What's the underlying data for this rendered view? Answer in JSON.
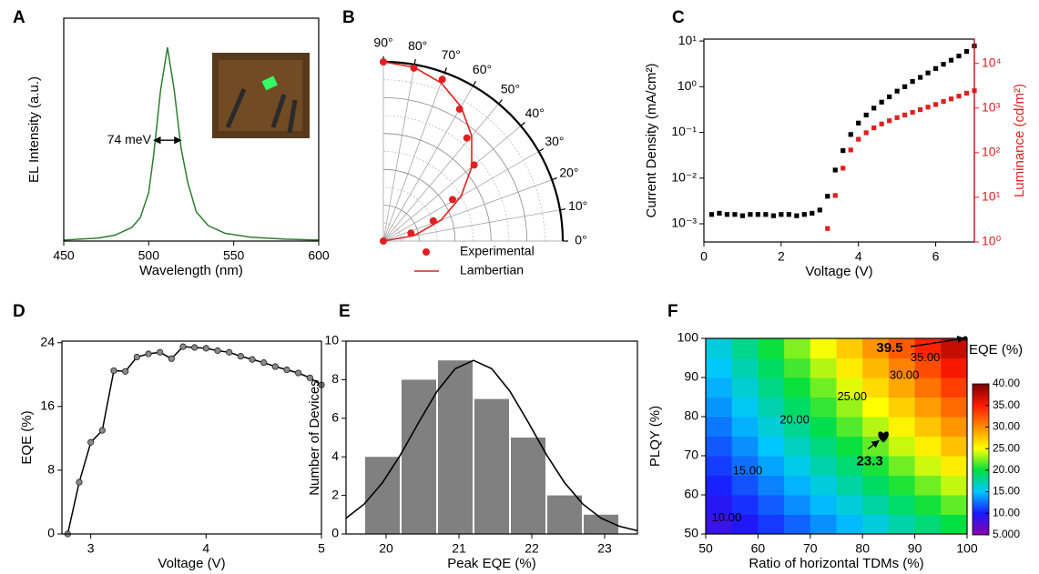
{
  "chart_data": [
    {
      "panel": "A",
      "type": "line",
      "x_label": "Wavelength (nm)",
      "y_label": "EL Intensity (a.u.)",
      "x": [
        450,
        470,
        480,
        490,
        495,
        500,
        503,
        507,
        511,
        515,
        519,
        523,
        528,
        535,
        545,
        560,
        580,
        600
      ],
      "series": [
        {
          "color": "#2e7d32",
          "style": "line",
          "values": [
            0.005,
            0.015,
            0.03,
            0.07,
            0.12,
            0.25,
            0.45,
            0.78,
            1.0,
            0.78,
            0.48,
            0.3,
            0.15,
            0.08,
            0.04,
            0.02,
            0.01,
            0.005
          ]
        }
      ],
      "annotation": {
        "text": "74 meV",
        "x": [
          503,
          519
        ],
        "y": 0.52
      },
      "xlim": [
        450,
        600
      ],
      "ylim": [
        0,
        1.15
      ],
      "xticks": [
        450,
        500,
        550,
        600
      ]
    },
    {
      "panel": "B",
      "type": "polar",
      "rlim": [
        0,
        1
      ],
      "thetaticks": [
        {
          "value": 0,
          "label": "0°"
        },
        {
          "value": 10,
          "label": "10°"
        },
        {
          "value": 20,
          "label": "20°"
        },
        {
          "value": 30,
          "label": "30°"
        },
        {
          "value": 40,
          "label": "40°"
        },
        {
          "value": 50,
          "label": "50°"
        },
        {
          "value": 60,
          "label": "60°"
        },
        {
          "value": 70,
          "label": "70°"
        },
        {
          "value": 80,
          "label": "80°"
        },
        {
          "value": 90,
          "label": "90°"
        }
      ],
      "series": [
        {
          "name": "Experimental",
          "color": "#e02020",
          "style": "markers",
          "theta": [
            0,
            16,
            22,
            31,
            40,
            51,
            60,
            70,
            80,
            90
          ],
          "values": [
            0,
            0.16,
            0.3,
            0.45,
            0.66,
            0.74,
            0.85,
            0.96,
            0.98,
            1.0
          ]
        },
        {
          "name": "Lambertian",
          "color": "#e02020",
          "style": "line",
          "theta": [
            0,
            10,
            20,
            30,
            40,
            50,
            60,
            70,
            80,
            90
          ],
          "values": [
            0,
            0.174,
            0.342,
            0.5,
            0.643,
            0.766,
            0.866,
            0.94,
            0.985,
            1.0
          ]
        }
      ]
    },
    {
      "panel": "C",
      "type": "line",
      "x_label": "Voltage (V)",
      "y_label": "Current Density (mA/cm²)",
      "y2_label": "Luminance (cd/m²)",
      "y2_color": "#e02020",
      "x": [
        0.2,
        0.4,
        0.6,
        0.8,
        1.0,
        1.2,
        1.4,
        1.6,
        1.8,
        2.0,
        2.2,
        2.4,
        2.6,
        2.8,
        3.0,
        3.2,
        3.4,
        3.6,
        3.8,
        4.0,
        4.2,
        4.4,
        4.6,
        4.8,
        5.0,
        5.2,
        5.4,
        5.6,
        5.8,
        6.0,
        6.2,
        6.4,
        6.6,
        6.8,
        7.0
      ],
      "series": [
        {
          "color": "#000000",
          "style": "markers",
          "marker": "square",
          "values": [
            0.0016,
            0.0017,
            0.0016,
            0.0016,
            0.0015,
            0.0016,
            0.0016,
            0.0016,
            0.0015,
            0.0016,
            0.0016,
            0.0015,
            0.0016,
            0.0017,
            0.002,
            0.004,
            0.015,
            0.04,
            0.09,
            0.16,
            0.24,
            0.34,
            0.46,
            0.6,
            0.8,
            1.0,
            1.3,
            1.6,
            2.0,
            2.5,
            3.1,
            3.8,
            4.7,
            5.9,
            7.8
          ]
        },
        {
          "color": "#e02020",
          "style": "markers",
          "marker": "square",
          "axis": "y2",
          "values": [
            null,
            null,
            null,
            null,
            null,
            null,
            null,
            null,
            null,
            null,
            null,
            null,
            null,
            null,
            null,
            2,
            11,
            45,
            115,
            200,
            280,
            360,
            440,
            520,
            610,
            700,
            800,
            920,
            1050,
            1200,
            1400,
            1600,
            1850,
            2150,
            2450
          ]
        }
      ],
      "xlim": [
        0,
        7
      ],
      "xticks": [
        0,
        2,
        4,
        6
      ],
      "ylog": true,
      "y2log": true,
      "ylim": [
        0.0004,
        11
      ],
      "yticks": [
        {
          "value": 0.001,
          "label": "10⁻³"
        },
        {
          "value": 0.01,
          "label": "10⁻²"
        },
        {
          "value": 0.1,
          "label": "10⁻¹"
        },
        {
          "value": 1,
          "label": "10⁰"
        },
        {
          "value": 10,
          "label": "10¹"
        }
      ],
      "y2lim": [
        1,
        35000
      ],
      "y2ticks": [
        {
          "value": 1,
          "label": "10⁰"
        },
        {
          "value": 10,
          "label": "10¹"
        },
        {
          "value": 100,
          "label": "10²"
        },
        {
          "value": 1000,
          "label": "10³"
        },
        {
          "value": 10000,
          "label": "10⁴"
        }
      ]
    },
    {
      "panel": "D",
      "type": "line",
      "x_label": "Voltage (V)",
      "y_label": "EQE (%)",
      "x": [
        2.8,
        2.9,
        3.0,
        3.1,
        3.2,
        3.3,
        3.4,
        3.5,
        3.6,
        3.7,
        3.8,
        3.9,
        4.0,
        4.1,
        4.2,
        4.3,
        4.4,
        4.5,
        4.6,
        4.7,
        4.8,
        4.9,
        5.0
      ],
      "series": [
        {
          "color": "#000000",
          "style": "line-markers",
          "marker": "circle",
          "values": [
            0,
            6.5,
            11.5,
            13,
            20.5,
            20.4,
            22.2,
            22.6,
            22.8,
            22,
            23.5,
            23.4,
            23.3,
            23.0,
            22.8,
            22.3,
            21.9,
            21.5,
            21.0,
            20.6,
            20.2,
            19.6,
            18.7
          ]
        }
      ],
      "xlim": [
        2.75,
        5
      ],
      "xticks": [
        3,
        4,
        5
      ],
      "ylim": [
        0,
        24.2
      ],
      "yticks": [
        0,
        8,
        16,
        24
      ]
    },
    {
      "panel": "E",
      "type": "histogram",
      "x_label": "Peak EQE (%)",
      "y_label": "Number of Devices",
      "color": "#808080",
      "bins": [
        19.7,
        20.2,
        20.7,
        21.2,
        21.7,
        22.2,
        22.7,
        23.2
      ],
      "counts": [
        4,
        8,
        9,
        7,
        5,
        2,
        1
      ],
      "fit": {
        "color": "#000000",
        "x": [
          19.45,
          19.7,
          19.95,
          20.2,
          20.45,
          20.7,
          20.95,
          21.2,
          21.45,
          21.7,
          21.95,
          22.2,
          22.45,
          22.7,
          22.95,
          23.2,
          23.45
        ],
        "values": [
          0.82,
          1.55,
          2.66,
          4.12,
          5.8,
          7.4,
          8.57,
          9,
          8.57,
          7.4,
          5.8,
          4.12,
          2.66,
          1.55,
          0.82,
          0.4,
          0.17
        ]
      },
      "xlim": [
        19.45,
        23.45
      ],
      "xticks": [
        20,
        21,
        22,
        23
      ],
      "ylim": [
        0,
        10
      ],
      "yticks": [
        0,
        2,
        4,
        6,
        8,
        10
      ]
    },
    {
      "panel": "F",
      "type": "heatmap",
      "x_label": "Ratio of horizontal TDMs (%)",
      "y_label": "PLQY (%)",
      "colorbar_label": "EQE (%)",
      "x": [
        52.5,
        57.5,
        62.5,
        67.5,
        72.5,
        77.5,
        82.5,
        87.5,
        92.5,
        97.5
      ],
      "y": [
        52.5,
        57.5,
        62.5,
        67.5,
        72.5,
        77.5,
        82.5,
        87.5,
        92.5,
        97.5
      ],
      "z": [
        [
          8.6,
          9.7,
          10.9,
          12.1,
          13.4,
          14.6,
          15.9,
          17.3,
          18.6,
          20.0
        ],
        [
          9.4,
          10.6,
          11.9,
          13.3,
          14.6,
          16.0,
          17.4,
          18.9,
          20.4,
          21.9
        ],
        [
          10.2,
          11.6,
          13.0,
          14.4,
          15.9,
          17.4,
          19.0,
          20.6,
          22.2,
          23.8
        ],
        [
          11.0,
          12.5,
          14.0,
          15.6,
          17.2,
          18.8,
          20.5,
          22.2,
          24.0,
          25.8
        ],
        [
          11.8,
          13.4,
          15.0,
          16.7,
          18.4,
          20.2,
          22.0,
          23.9,
          25.7,
          27.7
        ],
        [
          12.7,
          14.3,
          16.1,
          17.9,
          19.7,
          21.6,
          23.5,
          25.5,
          27.5,
          29.6
        ],
        [
          13.5,
          15.3,
          17.1,
          19.0,
          21.0,
          23.0,
          25.0,
          27.1,
          29.3,
          31.5
        ],
        [
          14.3,
          16.2,
          18.2,
          20.2,
          22.2,
          24.4,
          26.6,
          28.8,
          31.1,
          33.4
        ],
        [
          15.1,
          17.1,
          19.2,
          21.3,
          23.5,
          25.8,
          28.1,
          30.4,
          32.8,
          35.3
        ],
        [
          15.9,
          18.0,
          20.2,
          22.5,
          24.8,
          27.2,
          29.6,
          32.1,
          34.6,
          37.2
        ]
      ],
      "zlim": [
        5,
        40
      ],
      "colormap": [
        "#8a00a8",
        "#1a1aff",
        "#00c8ff",
        "#00e040",
        "#ffff00",
        "#ff8c00",
        "#ff1a00",
        "#7a0000"
      ],
      "cbticks": [
        {
          "value": 5,
          "label": "5.000"
        },
        {
          "value": 10,
          "label": "10.00"
        },
        {
          "value": 15,
          "label": "15.00"
        },
        {
          "value": 20,
          "label": "20.00"
        },
        {
          "value": 25,
          "label": "25.00"
        },
        {
          "value": 30,
          "label": "30.00"
        },
        {
          "value": 35,
          "label": "35.00"
        },
        {
          "value": 40,
          "label": "40.00"
        }
      ],
      "contour_labels": [
        {
          "value": 10,
          "label": "10.00",
          "x": 54,
          "y": 54
        },
        {
          "value": 15,
          "label": "15.00",
          "x": 58,
          "y": 66
        },
        {
          "value": 20,
          "label": "20.00",
          "x": 67,
          "y": 79
        },
        {
          "value": 25,
          "label": "25.00",
          "x": 78,
          "y": 85
        },
        {
          "value": 30,
          "label": "30.00",
          "x": 88,
          "y": 90.5
        },
        {
          "value": 35,
          "label": "35.00",
          "x": 92,
          "y": 95
        }
      ],
      "points": [
        {
          "x": 100,
          "y": 100,
          "value": 39.5
        },
        {
          "x": 84,
          "y": 75,
          "value": 23.3
        }
      ],
      "xlim": [
        50,
        100
      ],
      "ylim": [
        50,
        100
      ],
      "xticks": [
        50,
        60,
        70,
        80,
        90,
        100
      ],
      "yticks": [
        50,
        60,
        70,
        80,
        90,
        100
      ]
    }
  ]
}
